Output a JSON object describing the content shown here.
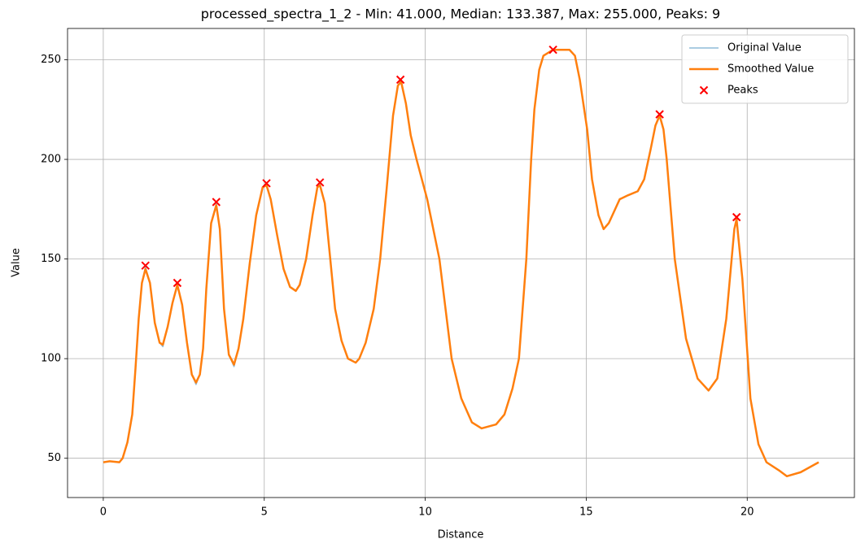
{
  "chart_data": {
    "type": "line",
    "title": "processed_spectra_1_2 - Min: 41.000, Median: 133.387, Max: 255.000, Peaks: 9",
    "xlabel": "Distance",
    "ylabel": "Value",
    "xlim": [
      -1.11,
      23.33
    ],
    "ylim": [
      30.3,
      265.7
    ],
    "xticks": [
      0,
      5,
      10,
      15,
      20
    ],
    "yticks": [
      50,
      100,
      150,
      200,
      250
    ],
    "grid": true,
    "legend": "upper right",
    "x": [
      0,
      0.2,
      0.5,
      0.6,
      0.75,
      0.9,
      1.0,
      1.1,
      1.2,
      1.31,
      1.45,
      1.6,
      1.75,
      1.85,
      2.0,
      2.15,
      2.3,
      2.45,
      2.6,
      2.75,
      2.88,
      3.0,
      3.1,
      3.2,
      3.35,
      3.51,
      3.62,
      3.75,
      3.9,
      4.06,
      4.2,
      4.35,
      4.55,
      4.75,
      4.95,
      5.07,
      5.2,
      5.4,
      5.6,
      5.8,
      5.98,
      6.1,
      6.3,
      6.5,
      6.65,
      6.73,
      6.88,
      7.05,
      7.2,
      7.4,
      7.6,
      7.84,
      7.95,
      8.15,
      8.4,
      8.6,
      8.8,
      9.0,
      9.15,
      9.25,
      9.4,
      9.55,
      9.73,
      10.06,
      10.44,
      10.82,
      11.12,
      11.45,
      11.75,
      12.2,
      12.46,
      12.71,
      12.91,
      13.14,
      13.29,
      13.39,
      13.54,
      13.67,
      13.97,
      14.48,
      14.65,
      14.8,
      15.03,
      15.18,
      15.38,
      15.54,
      15.7,
      16.04,
      16.3,
      16.6,
      16.8,
      17.0,
      17.15,
      17.28,
      17.4,
      17.5,
      17.75,
      18.1,
      18.46,
      18.8,
      19.07,
      19.35,
      19.6,
      19.67,
      19.85,
      20.1,
      20.35,
      20.6,
      20.98,
      21.23,
      21.66,
      22.22
    ],
    "series": [
      {
        "name": "Original Value",
        "color": "#8fbbd9",
        "values": [
          48,
          48.5,
          48,
          50,
          58,
          72,
          95,
          120,
          138,
          146,
          138,
          118,
          108,
          106,
          116,
          128,
          137,
          127,
          108,
          92,
          87,
          92,
          105,
          135,
          168,
          178,
          165,
          125,
          102,
          96,
          105,
          120,
          148,
          172,
          186,
          188,
          180,
          162,
          145,
          136,
          134,
          137,
          150,
          172,
          186,
          188,
          178,
          150,
          125,
          109,
          100,
          98,
          100,
          108,
          125,
          150,
          185,
          222,
          237,
          240,
          228,
          212,
          200,
          180,
          150,
          100,
          80,
          68,
          65,
          67,
          72,
          85,
          100,
          150,
          200,
          225,
          245,
          252,
          255,
          255,
          252,
          240,
          215,
          190,
          172,
          165,
          168,
          180,
          182,
          184,
          190,
          205,
          217,
          222.5,
          215,
          200,
          150,
          110,
          90,
          84,
          90,
          120,
          165,
          171,
          140,
          80,
          57,
          48,
          44,
          41,
          43,
          48
        ]
      },
      {
        "name": "Smoothed Value",
        "color": "#ff7f0e",
        "values": [
          48,
          48.5,
          48,
          50,
          58,
          72,
          95,
          120,
          138,
          145,
          138,
          118,
          108,
          107,
          116,
          128,
          137,
          127,
          108,
          92,
          88,
          92,
          105,
          135,
          168,
          177,
          165,
          125,
          102,
          97,
          105,
          120,
          148,
          172,
          186,
          187,
          180,
          162,
          145,
          136,
          134,
          137,
          150,
          172,
          186,
          187,
          178,
          150,
          125,
          109,
          100,
          98,
          100,
          108,
          125,
          150,
          185,
          222,
          237,
          239,
          228,
          212,
          200,
          180,
          150,
          100,
          80,
          68,
          65,
          67,
          72,
          85,
          100,
          150,
          200,
          225,
          245,
          252,
          255,
          255,
          252,
          240,
          215,
          190,
          172,
          165,
          168,
          180,
          182,
          184,
          190,
          205,
          217,
          222,
          215,
          200,
          150,
          110,
          90,
          84,
          90,
          120,
          165,
          170,
          140,
          80,
          57,
          48,
          44,
          41,
          43,
          48
        ]
      },
      {
        "name": "Peaks",
        "type": "scatter",
        "color": "#ff0000",
        "x": [
          1.31,
          2.3,
          3.51,
          5.07,
          6.73,
          9.23,
          13.97,
          17.28,
          19.67
        ],
        "values": [
          146.7,
          138,
          178.6,
          188,
          188.4,
          240,
          255,
          222.6,
          171
        ]
      }
    ]
  }
}
